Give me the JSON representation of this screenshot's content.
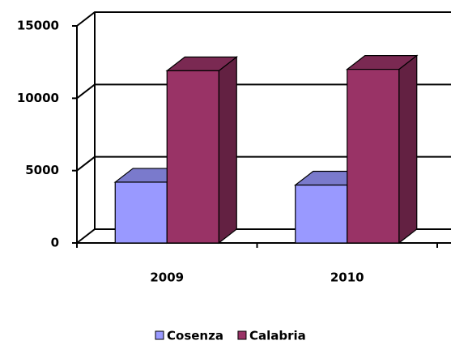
{
  "chart_data": {
    "type": "bar3d",
    "categories": [
      "2009",
      "2010"
    ],
    "series": [
      {
        "name": "Cosenza",
        "color": "#9999ff",
        "values": [
          4200,
          4000
        ]
      },
      {
        "name": "Calabria",
        "color": "#993366",
        "values": [
          11900,
          12000
        ]
      }
    ],
    "ylim": [
      0,
      15000
    ],
    "yticks": [
      0,
      5000,
      10000,
      15000
    ],
    "grid": true,
    "legend": "bottom"
  }
}
